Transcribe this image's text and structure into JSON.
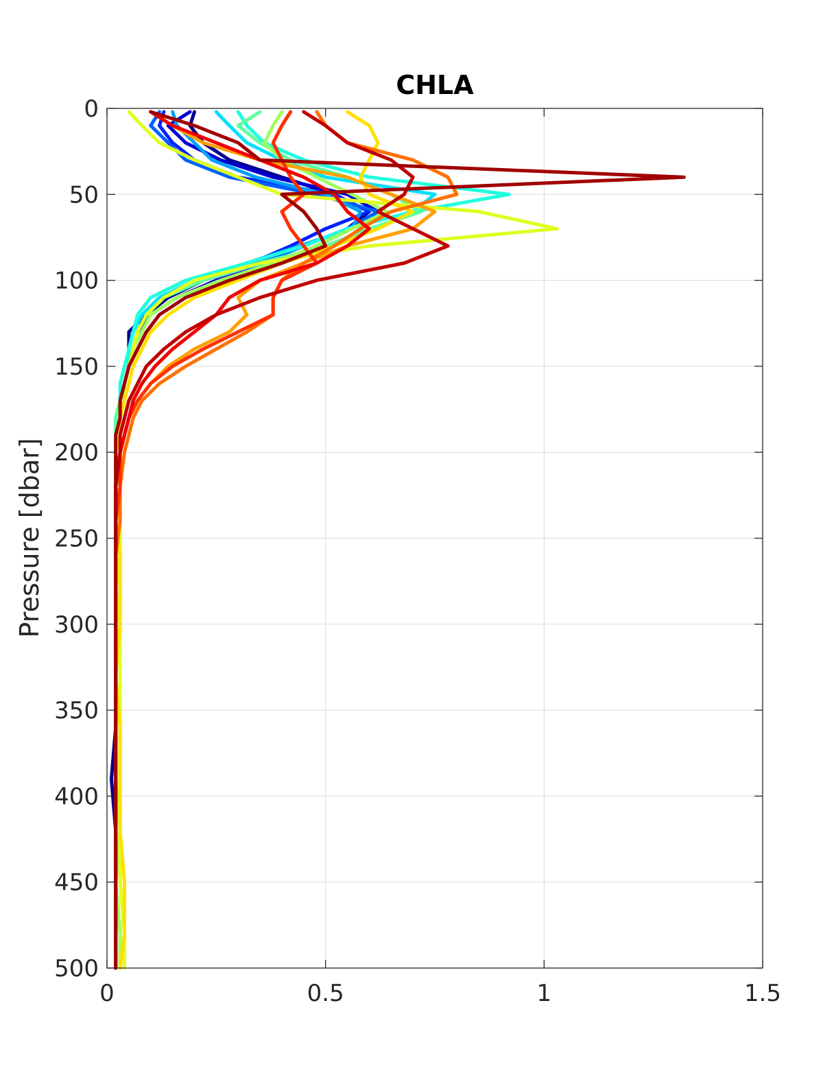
{
  "chart_data": {
    "type": "line",
    "title": "CHLA",
    "xlabel": "",
    "ylabel": "Pressure [dbar]",
    "xlim": [
      0,
      1.5
    ],
    "ylim": [
      0,
      500
    ],
    "y_reversed": true,
    "grid": true,
    "legend": "none",
    "xticks": [
      0,
      0.5,
      1,
      1.5
    ],
    "xtick_labels": [
      "0",
      "0.5",
      "1",
      "1.5"
    ],
    "yticks": [
      0,
      50,
      100,
      150,
      200,
      250,
      300,
      350,
      400,
      450,
      500
    ],
    "ytick_labels": [
      "0",
      "50",
      "100",
      "150",
      "200",
      "250",
      "300",
      "350",
      "400",
      "450",
      "500"
    ],
    "pressure_levels": [
      2,
      10,
      20,
      30,
      40,
      50,
      60,
      70,
      80,
      90,
      100,
      110,
      120,
      130,
      140,
      150,
      160,
      170,
      180,
      190,
      200,
      220,
      240,
      260,
      280,
      300,
      330,
      360,
      390,
      420,
      450,
      480,
      500
    ],
    "series": [
      {
        "color": "#00008f",
        "values": [
          0.2,
          0.19,
          0.22,
          0.28,
          0.4,
          0.52,
          0.6,
          0.55,
          0.45,
          0.35,
          0.22,
          0.14,
          0.09,
          0.05,
          0.05,
          0.05,
          0.04,
          0.03,
          0.03,
          0.02,
          0.02,
          0.02,
          0.02,
          0.02,
          0.02,
          0.02,
          0.02,
          0.02,
          0.01,
          0.02,
          0.02,
          0.02,
          0.02
        ]
      },
      {
        "color": "#0000d0",
        "values": [
          0.19,
          0.14,
          0.18,
          0.26,
          0.38,
          0.55,
          0.62,
          0.56,
          0.48,
          0.38,
          0.25,
          0.16,
          0.1,
          0.07,
          0.06,
          0.05,
          0.04,
          0.03,
          0.03,
          0.02,
          0.02,
          0.02,
          0.02,
          0.02,
          0.02,
          0.02,
          0.02,
          0.02,
          0.02,
          0.02,
          0.02,
          0.02,
          0.02
        ]
      },
      {
        "color": "#0020ff",
        "values": [
          0.13,
          0.12,
          0.15,
          0.2,
          0.3,
          0.52,
          0.6,
          0.5,
          0.42,
          0.33,
          0.2,
          0.13,
          0.09,
          0.07,
          0.06,
          0.05,
          0.04,
          0.03,
          0.03,
          0.02,
          0.02,
          0.02,
          0.02,
          0.02,
          0.02,
          0.02,
          0.02,
          0.02,
          0.02,
          0.02,
          0.02,
          0.02,
          0.02
        ]
      },
      {
        "color": "#0060ff",
        "values": [
          0.12,
          0.1,
          0.14,
          0.18,
          0.28,
          0.48,
          0.62,
          0.55,
          0.45,
          0.35,
          0.22,
          0.12,
          0.09,
          0.07,
          0.06,
          0.05,
          0.04,
          0.03,
          0.03,
          0.02,
          0.02,
          0.02,
          0.03,
          0.02,
          0.02,
          0.03,
          0.02,
          0.02,
          0.02,
          0.02,
          0.02,
          0.02,
          0.02
        ]
      },
      {
        "color": "#00a0ff",
        "values": [
          0.15,
          0.16,
          0.2,
          0.24,
          0.34,
          0.5,
          0.58,
          0.56,
          0.44,
          0.32,
          0.2,
          0.13,
          0.09,
          0.07,
          0.06,
          0.05,
          0.04,
          0.03,
          0.03,
          0.02,
          0.02,
          0.02,
          0.02,
          0.02,
          0.02,
          0.02,
          0.02,
          0.02,
          0.02,
          0.02,
          0.02,
          0.02,
          0.02
        ]
      },
      {
        "color": "#00e0ff",
        "values": [
          0.25,
          0.28,
          0.32,
          0.4,
          0.5,
          0.75,
          0.7,
          0.62,
          0.5,
          0.36,
          0.2,
          0.12,
          0.08,
          0.06,
          0.05,
          0.05,
          0.04,
          0.03,
          0.02,
          0.02,
          0.02,
          0.03,
          0.02,
          0.02,
          0.02,
          0.02,
          0.02,
          0.02,
          0.02,
          0.02,
          0.02,
          0.02,
          0.02
        ]
      },
      {
        "color": "#20ffdf",
        "values": [
          0.3,
          0.32,
          0.36,
          0.45,
          0.6,
          0.92,
          0.7,
          0.55,
          0.45,
          0.32,
          0.18,
          0.1,
          0.07,
          0.06,
          0.05,
          0.04,
          0.03,
          0.03,
          0.02,
          0.02,
          0.02,
          0.02,
          0.02,
          0.02,
          0.02,
          0.02,
          0.02,
          0.02,
          0.02,
          0.02,
          0.02,
          0.02,
          0.02
        ]
      },
      {
        "color": "#60ff9f",
        "values": [
          0.35,
          0.3,
          0.35,
          0.42,
          0.55,
          0.65,
          0.72,
          0.6,
          0.5,
          0.35,
          0.22,
          0.13,
          0.09,
          0.07,
          0.06,
          0.05,
          0.04,
          0.03,
          0.02,
          0.02,
          0.02,
          0.02,
          0.03,
          0.02,
          0.02,
          0.02,
          0.02,
          0.02,
          0.02,
          0.02,
          0.02,
          0.02,
          0.02
        ]
      },
      {
        "color": "#a0ff5f",
        "values": [
          0.4,
          0.38,
          0.36,
          0.4,
          0.48,
          0.56,
          0.64,
          0.56,
          0.48,
          0.38,
          0.26,
          0.16,
          0.1,
          0.08,
          0.06,
          0.05,
          0.04,
          0.04,
          0.03,
          0.02,
          0.02,
          0.03,
          0.03,
          0.03,
          0.03,
          0.03,
          0.02,
          0.02,
          0.02,
          0.03,
          0.02,
          0.03,
          0.03
        ]
      },
      {
        "color": "#dfff20",
        "values": [
          0.05,
          0.08,
          0.12,
          0.2,
          0.3,
          0.4,
          0.85,
          1.03,
          0.6,
          0.35,
          0.2,
          0.13,
          0.09,
          0.07,
          0.06,
          0.05,
          0.04,
          0.03,
          0.03,
          0.02,
          0.02,
          0.02,
          0.03,
          0.03,
          0.02,
          0.03,
          0.03,
          0.03,
          0.03,
          0.03,
          0.03,
          0.04,
          0.04
        ]
      },
      {
        "color": "#ffe000",
        "values": [
          0.55,
          0.6,
          0.62,
          0.6,
          0.58,
          0.6,
          0.7,
          0.62,
          0.52,
          0.4,
          0.3,
          0.2,
          0.14,
          0.1,
          0.08,
          0.06,
          0.05,
          0.04,
          0.03,
          0.03,
          0.02,
          0.02,
          0.02,
          0.03,
          0.03,
          0.03,
          0.02,
          0.03,
          0.03,
          0.03,
          0.04,
          0.04,
          0.03
        ]
      },
      {
        "color": "#ffa000",
        "values": [
          0.1,
          0.15,
          0.22,
          0.35,
          0.55,
          0.65,
          0.75,
          0.7,
          0.55,
          0.45,
          0.35,
          0.3,
          0.32,
          0.28,
          0.2,
          0.14,
          0.1,
          0.07,
          0.05,
          0.04,
          0.03,
          0.02,
          0.02,
          0.02,
          0.02,
          0.02,
          0.02,
          0.02,
          0.02,
          0.02,
          0.02,
          0.02,
          0.02
        ]
      },
      {
        "color": "#ff7000",
        "values": [
          0.48,
          0.5,
          0.55,
          0.7,
          0.78,
          0.8,
          0.65,
          0.58,
          0.52,
          0.45,
          0.4,
          0.38,
          0.38,
          0.32,
          0.25,
          0.18,
          0.12,
          0.08,
          0.06,
          0.05,
          0.04,
          0.03,
          0.03,
          0.02,
          0.02,
          0.02,
          0.02,
          0.02,
          0.02,
          0.02,
          0.02,
          0.02,
          0.02
        ]
      },
      {
        "color": "#ff3000",
        "values": [
          0.42,
          0.4,
          0.38,
          0.4,
          0.42,
          0.45,
          0.4,
          0.42,
          0.45,
          0.48,
          0.4,
          0.38,
          0.38,
          0.3,
          0.22,
          0.15,
          0.1,
          0.07,
          0.05,
          0.04,
          0.03,
          0.03,
          0.02,
          0.02,
          0.02,
          0.02,
          0.02,
          0.02,
          0.02,
          0.02,
          0.02,
          0.02,
          0.02
        ]
      },
      {
        "color": "#f00000",
        "values": [
          0.1,
          0.15,
          0.25,
          0.35,
          0.45,
          0.52,
          0.55,
          0.6,
          0.55,
          0.48,
          0.35,
          0.28,
          0.25,
          0.2,
          0.15,
          0.11,
          0.08,
          0.06,
          0.05,
          0.04,
          0.03,
          0.02,
          0.02,
          0.02,
          0.02,
          0.02,
          0.02,
          0.02,
          0.02,
          0.02,
          0.02,
          0.02,
          0.02
        ]
      },
      {
        "color": "#c00000",
        "values": [
          0.45,
          0.5,
          0.55,
          0.65,
          0.7,
          0.68,
          0.62,
          0.7,
          0.78,
          0.68,
          0.48,
          0.35,
          0.25,
          0.18,
          0.13,
          0.09,
          0.07,
          0.05,
          0.04,
          0.03,
          0.03,
          0.02,
          0.02,
          0.02,
          0.02,
          0.02,
          0.02,
          0.02,
          0.02,
          0.02,
          0.02,
          0.02,
          0.02
        ]
      },
      {
        "color": "#a00000",
        "values": [
          0.1,
          0.2,
          0.3,
          0.35,
          1.32,
          0.4,
          0.45,
          0.48,
          0.5,
          0.4,
          0.28,
          0.18,
          0.12,
          0.09,
          0.07,
          0.05,
          0.04,
          0.03,
          0.03,
          0.02,
          0.02,
          0.02,
          0.02,
          0.02,
          0.02,
          0.02,
          0.02,
          0.02,
          0.02,
          0.02,
          0.02,
          0.02,
          0.02
        ]
      }
    ]
  }
}
